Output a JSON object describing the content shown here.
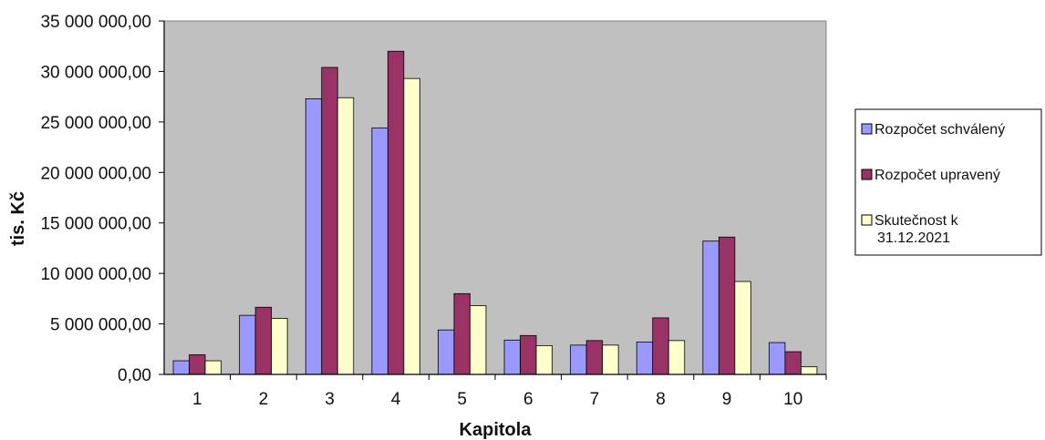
{
  "chart_data": {
    "type": "bar",
    "title": "",
    "xlabel": "Kapitola",
    "ylabel": "tis. Kč",
    "ylim": [
      0,
      35000000
    ],
    "yticks": [
      "0,00",
      "5 000 000,00",
      "10 000 000,00",
      "15 000 000,00",
      "20 000 000,00",
      "25 000 000,00",
      "30 000 000,00",
      "35 000 000,00"
    ],
    "categories": [
      "1",
      "2",
      "3",
      "4",
      "5",
      "6",
      "7",
      "8",
      "9",
      "10"
    ],
    "series": [
      {
        "name": "Rozpočet schválený",
        "color": "#9999ff",
        "values": [
          1350000,
          5850000,
          27300000,
          24400000,
          4400000,
          3400000,
          2900000,
          3200000,
          13200000,
          3150000
        ]
      },
      {
        "name": "Rozpočet upravený",
        "color": "#993366",
        "values": [
          1950000,
          6650000,
          30400000,
          32000000,
          8000000,
          3850000,
          3350000,
          5600000,
          13600000,
          2250000
        ]
      },
      {
        "name": "Skutečnost k 31.12.2021",
        "color": "#ffffcc",
        "values": [
          1350000,
          5550000,
          27400000,
          29300000,
          6800000,
          2850000,
          2900000,
          3350000,
          9200000,
          750000
        ]
      }
    ],
    "grid": false,
    "plot_background": "#c0c0c0",
    "legend": "right"
  }
}
